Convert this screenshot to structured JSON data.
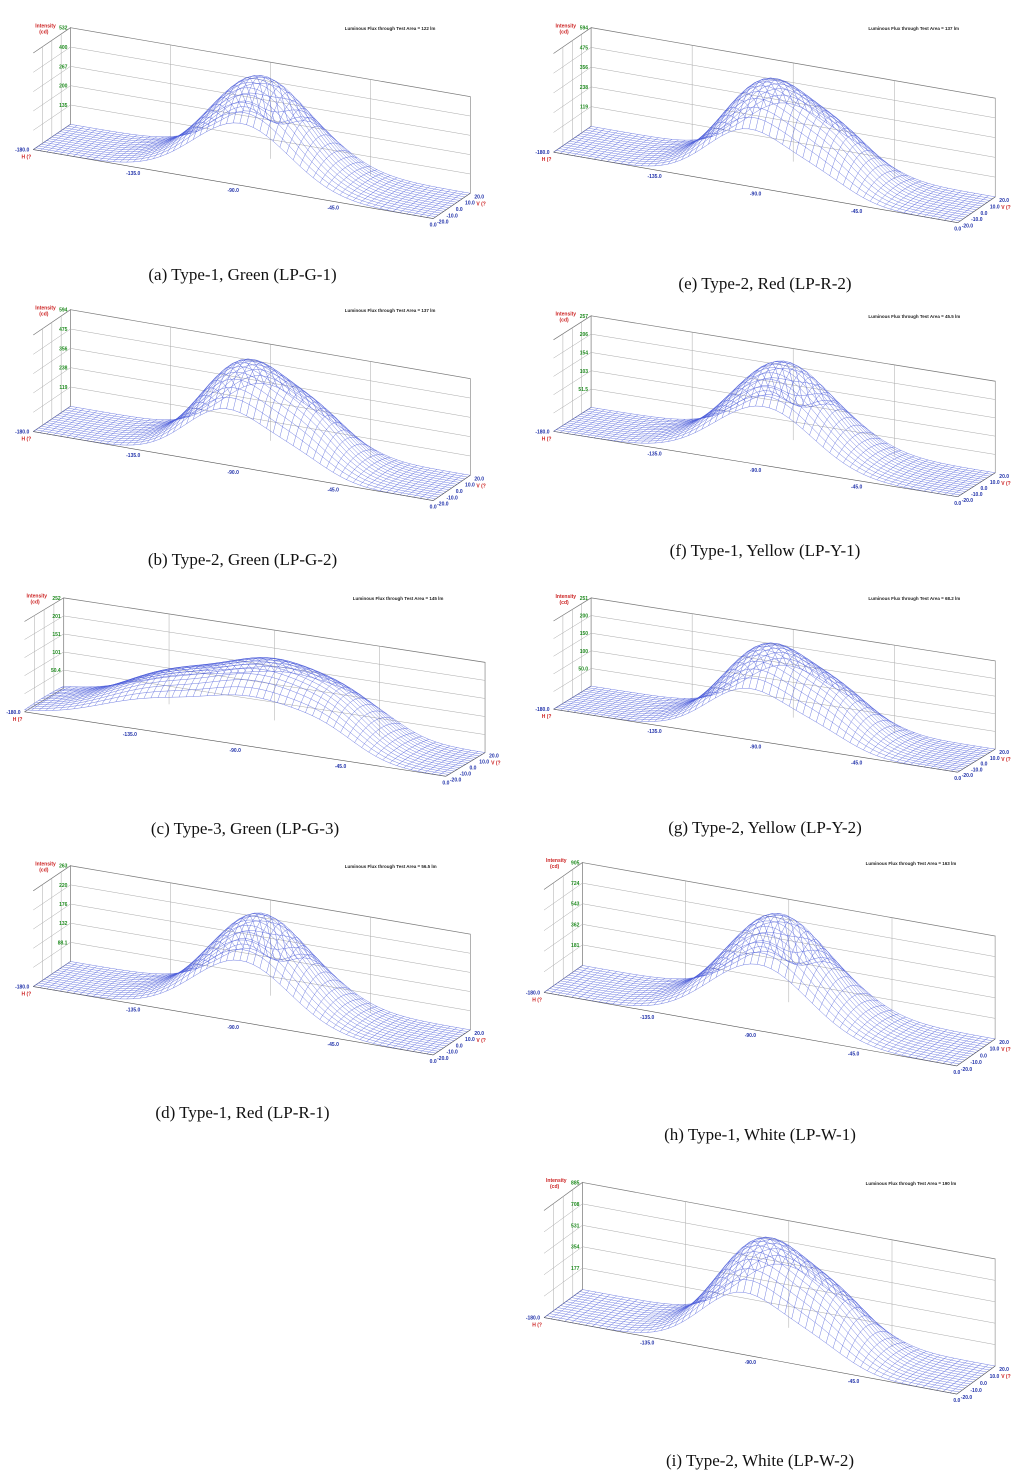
{
  "panels": [
    {
      "id": "a",
      "caption": "(a)  Type-1, Green (LP-G-1)",
      "flux_text": "Luminous Flux through Test Area = 122 lm",
      "zticks": [
        "532",
        "400",
        "267",
        "200",
        "135"
      ]
    },
    {
      "id": "b",
      "caption": "(b)  Type-2, Green (LP-G-2)",
      "flux_text": "Luminous Flux through Test Area = 137 lm",
      "zticks": [
        "594",
        "475",
        "356",
        "238",
        "119"
      ]
    },
    {
      "id": "c",
      "caption": "(c)  Type-3, Green (LP-G-3)",
      "flux_text": "Luminous Flux through Test Area = 145 lm",
      "zticks": [
        "252",
        "201",
        "151",
        "101",
        "50.4"
      ]
    },
    {
      "id": "d",
      "caption": "(d)  Type-1, Red (LP-R-1)",
      "flux_text": "Luminous Flux through Test Area = 56.5 lm",
      "zticks": [
        "263",
        "220",
        "176",
        "132",
        "88.1"
      ]
    },
    {
      "id": "e",
      "caption": "(e)  Type-2, Red (LP-R-2)",
      "flux_text": "Luminous Flux through Test Area = 137 lm",
      "zticks": [
        "594",
        "475",
        "356",
        "238",
        "119"
      ]
    },
    {
      "id": "f",
      "caption": "(f)  Type-1, Yellow (LP-Y-1)",
      "flux_text": "Luminous Flux through Test Area = 45.5 lm",
      "zticks": [
        "257",
        "206",
        "154",
        "103",
        "51.5"
      ]
    },
    {
      "id": "g",
      "caption": "(g)  Type-2, Yellow (LP-Y-2)",
      "flux_text": "Luminous Flux through Test Area = 68.2 lm",
      "zticks": [
        "251",
        "200",
        "150",
        "100",
        "50.0"
      ]
    },
    {
      "id": "h",
      "caption": "(h)  Type-1, White (LP-W-1)",
      "flux_text": "Luminous Flux through Test Area = 163 lm",
      "zticks": [
        "905",
        "724",
        "543",
        "362",
        "181"
      ]
    },
    {
      "id": "i",
      "caption": "(i)  Type-2, White (LP-W-2)",
      "flux_text": "Luminous Flux through Test Area = 190 lm",
      "zticks": [
        "885",
        "708",
        "531",
        "354",
        "177"
      ]
    }
  ],
  "axis_text": {
    "zlabel_1": "Intensity",
    "zlabel_2": "(cd)",
    "h_label": "H (?",
    "v_label": "V (?",
    "h_ticks": [
      "-180.0",
      "-135.0",
      "-90.0",
      "-45.0",
      "0.0"
    ],
    "v_ticks": [
      "-20.0",
      "-10.0",
      "0.0",
      "10.0",
      "20.0"
    ]
  },
  "colors": {
    "mesh": "#4a5bd9",
    "axis_red": "#cc2222",
    "axis_green": "#1f8a1f",
    "axis_blue": "#2233aa",
    "grid": "#777777"
  },
  "chart_data": [
    {
      "type": "surface",
      "panel": "a",
      "shape": "single",
      "peak_cd": 532,
      "x_range": [
        -180,
        0
      ],
      "y_range": [
        -20,
        20
      ]
    },
    {
      "type": "surface",
      "panel": "b",
      "shape": "double",
      "peak_cd": 594,
      "x_range": [
        -180,
        0
      ],
      "y_range": [
        -20,
        20
      ]
    },
    {
      "type": "surface",
      "panel": "c",
      "shape": "broad",
      "peak_cd": 252,
      "x_range": [
        -180,
        0
      ],
      "y_range": [
        -20,
        20
      ]
    },
    {
      "type": "surface",
      "panel": "d",
      "shape": "single",
      "peak_cd": 263,
      "x_range": [
        -180,
        0
      ],
      "y_range": [
        -20,
        20
      ]
    },
    {
      "type": "surface",
      "panel": "e",
      "shape": "double",
      "peak_cd": 594,
      "x_range": [
        -180,
        0
      ],
      "y_range": [
        -20,
        20
      ]
    },
    {
      "type": "surface",
      "panel": "f",
      "shape": "single",
      "peak_cd": 257,
      "x_range": [
        -180,
        0
      ],
      "y_range": [
        -20,
        20
      ]
    },
    {
      "type": "surface",
      "panel": "g",
      "shape": "double",
      "peak_cd": 251,
      "x_range": [
        -180,
        0
      ],
      "y_range": [
        -20,
        20
      ]
    },
    {
      "type": "surface",
      "panel": "h",
      "shape": "single",
      "peak_cd": 905,
      "x_range": [
        -180,
        0
      ],
      "y_range": [
        -20,
        20
      ]
    },
    {
      "type": "surface",
      "panel": "i",
      "shape": "double",
      "peak_cd": 885,
      "x_range": [
        -180,
        0
      ],
      "y_range": [
        -20,
        20
      ]
    }
  ]
}
